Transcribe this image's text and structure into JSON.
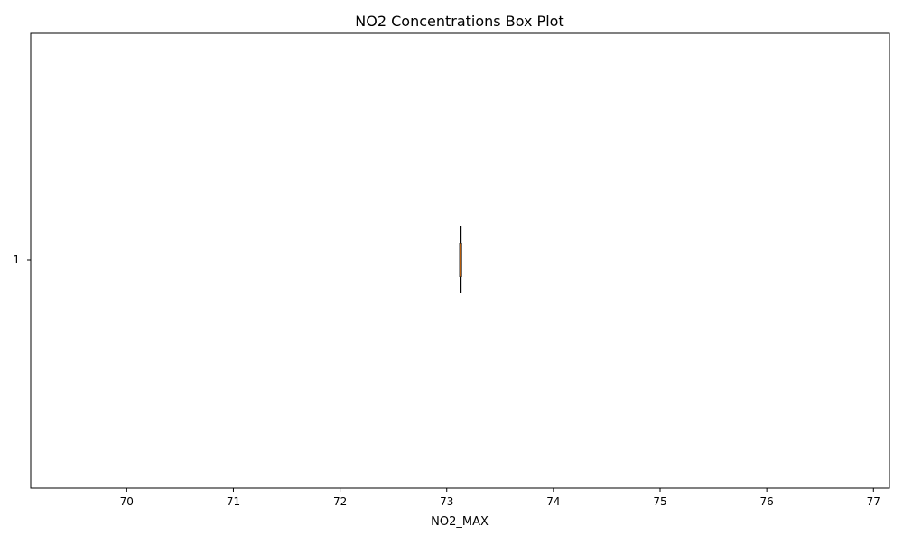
{
  "chart_data": {
    "type": "boxplot",
    "orientation": "horizontal",
    "title": "NO2 Concentrations Box Plot",
    "xlabel": "NO2_MAX",
    "ylabel": "",
    "xlim": [
      69.1,
      77.15
    ],
    "xticks": [
      70,
      71,
      72,
      73,
      74,
      75,
      76,
      77
    ],
    "yticks": [
      "1"
    ],
    "grid": false,
    "boxes": [
      {
        "label": "1",
        "whisker_low": 73.13,
        "q1": 73.13,
        "median": 73.13,
        "q3": 73.13,
        "whisker_high": 73.13
      }
    ],
    "colors": {
      "box": "#000000",
      "median": "#ff7f0e",
      "axis": "#000000"
    }
  }
}
